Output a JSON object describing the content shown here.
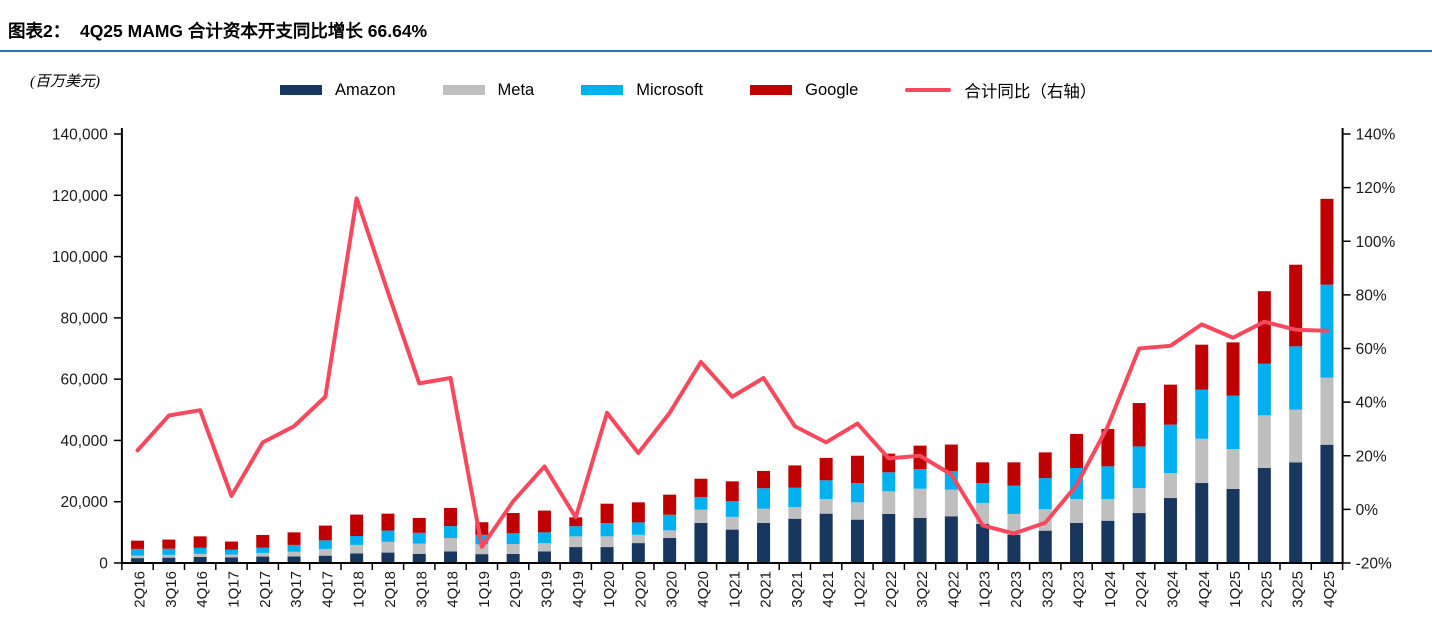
{
  "header": {
    "title": "图表2：  4Q25 MAMG 合计资本开支同比增长 66.64%",
    "unit_label": "(百万美元)"
  },
  "legend": {
    "items": [
      {
        "label": "Amazon",
        "color": "#17375E",
        "swatch": "box"
      },
      {
        "label": "Meta",
        "color": "#BFBFBF",
        "swatch": "box"
      },
      {
        "label": "Microsoft",
        "color": "#00B0F0",
        "swatch": "box"
      },
      {
        "label": "Google",
        "color": "#C00000",
        "swatch": "box"
      },
      {
        "label": "合计同比（右轴）",
        "color": "#F8485E",
        "swatch": "line"
      }
    ]
  },
  "chart_data": {
    "type": "bar",
    "subtype": "stacked-bars-with-line-overlay",
    "title": "4Q25 MAMG 合计资本开支同比增长 66.64%",
    "unit": "百万美元",
    "grid": false,
    "legend_position": "top",
    "categories": [
      "2Q16",
      "3Q16",
      "4Q16",
      "1Q17",
      "2Q17",
      "3Q17",
      "4Q17",
      "1Q18",
      "2Q18",
      "3Q18",
      "4Q18",
      "1Q19",
      "2Q19",
      "3Q19",
      "4Q19",
      "1Q20",
      "2Q20",
      "3Q20",
      "4Q20",
      "1Q21",
      "2Q21",
      "3Q21",
      "4Q21",
      "1Q22",
      "2Q22",
      "3Q22",
      "4Q22",
      "1Q23",
      "2Q23",
      "3Q23",
      "4Q23",
      "1Q24",
      "2Q24",
      "3Q24",
      "4Q24",
      "1Q25",
      "2Q25",
      "3Q25",
      "4Q25"
    ],
    "series": [
      {
        "name": "Amazon",
        "color": "#17375E",
        "values": [
          1600,
          1750,
          2000,
          1850,
          2100,
          2150,
          2400,
          3100,
          3400,
          3000,
          3750,
          2900,
          2950,
          3800,
          5200,
          5200,
          6500,
          8150,
          13050,
          10900,
          13050,
          14450,
          16100,
          14150,
          16000,
          14700,
          15250,
          12750,
          9250,
          10550,
          13050,
          13800,
          16300,
          21200,
          26100,
          24150,
          31000,
          32850,
          38600
        ]
      },
      {
        "name": "Meta",
        "color": "#BFBFBF",
        "values": [
          800,
          900,
          1000,
          900,
          1200,
          1500,
          2200,
          2800,
          3500,
          3350,
          4400,
          3200,
          3250,
          2700,
          3500,
          3500,
          2700,
          2500,
          4350,
          4150,
          4700,
          3800,
          4800,
          5650,
          7400,
          9550,
          8700,
          6850,
          6750,
          7050,
          7850,
          7100,
          8150,
          8150,
          14450,
          13050,
          17200,
          17200,
          21900
        ]
      },
      {
        "name": "Microsoft",
        "color": "#00B0F0",
        "values": [
          2200,
          2000,
          1950,
          1650,
          1750,
          2250,
          2800,
          2900,
          3700,
          3500,
          3900,
          3100,
          3500,
          3500,
          3300,
          4350,
          4050,
          5100,
          4150,
          5100,
          6650,
          6300,
          6100,
          6300,
          6200,
          6400,
          6000,
          6500,
          9250,
          10100,
          10100,
          10650,
          13600,
          15800,
          16000,
          17400,
          16900,
          20650,
          30350
        ]
      },
      {
        "name": "Google",
        "color": "#C00000",
        "values": [
          2700,
          3000,
          3750,
          2600,
          4100,
          4100,
          4800,
          7000,
          5500,
          4850,
          5900,
          4100,
          6600,
          7100,
          2900,
          6300,
          6550,
          6550,
          5950,
          6500,
          5650,
          7300,
          7300,
          8900,
          6100,
          7650,
          8700,
          6750,
          7600,
          8400,
          11100,
          12200,
          14150,
          13050,
          14700,
          17400,
          23600,
          26650,
          28000
        ]
      }
    ],
    "line_series": {
      "name": "合计同比（右轴）",
      "axis": "right",
      "color": "#F8485E",
      "values": [
        22,
        35,
        37,
        5,
        25,
        31,
        42,
        116,
        81,
        47,
        49,
        -14,
        3,
        16,
        -3,
        36,
        21,
        36,
        55,
        42,
        49,
        31,
        25,
        32,
        19,
        20,
        13,
        -6,
        -9,
        -5,
        9,
        31,
        60,
        61,
        69,
        64,
        70,
        67,
        66.64
      ]
    },
    "left_axis": {
      "min": 0,
      "max": 140000,
      "step": 20000,
      "ticks": [
        "0",
        "20,000",
        "40,000",
        "60,000",
        "80,000",
        "100,000",
        "120,000",
        "140,000"
      ]
    },
    "right_axis": {
      "min": -20,
      "max": 140,
      "step": 20,
      "ticks": [
        "-20%",
        "0%",
        "20%",
        "40%",
        "60%",
        "80%",
        "100%",
        "120%",
        "140%"
      ]
    }
  }
}
